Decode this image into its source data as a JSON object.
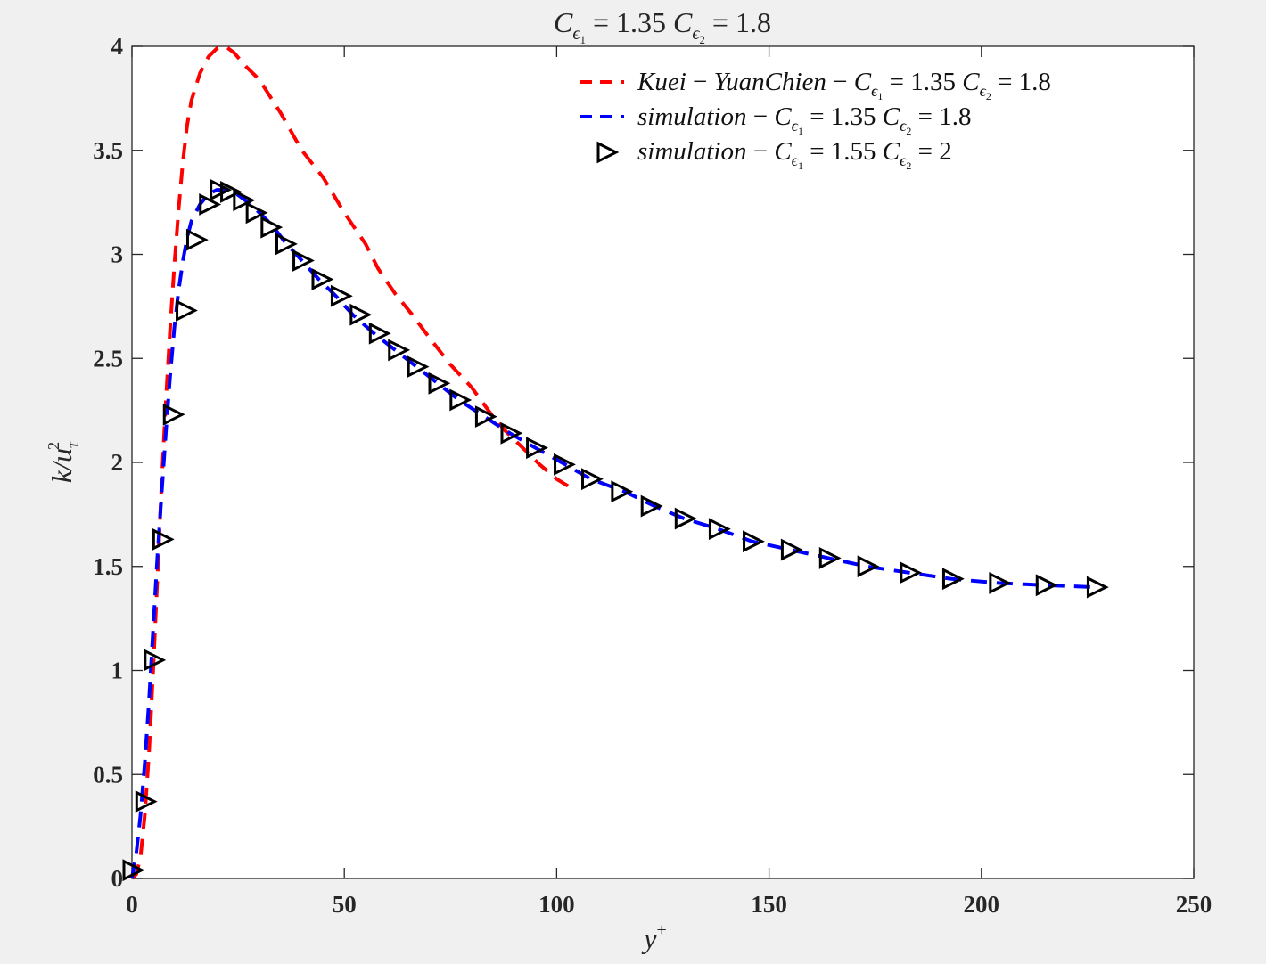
{
  "chart_data": {
    "type": "line",
    "title": "C_ε1 = 1.35 C_ε2 = 1.8",
    "xlabel": "y+",
    "ylabel": "k/u_τ^2",
    "xlim": [
      0,
      250
    ],
    "ylim": [
      0,
      4
    ],
    "xticks": [
      0,
      50,
      100,
      150,
      200,
      250
    ],
    "yticks": [
      0,
      0.5,
      1,
      1.5,
      2,
      2.5,
      3,
      3.5,
      4
    ],
    "grid": false,
    "legend_position": "top-right",
    "series": [
      {
        "name": "Kuei − YuanChien − C_ε1 = 1.35 C_ε2 = 1.8",
        "color": "#ff0000",
        "style": "dashed",
        "x": [
          0,
          1,
          2,
          3,
          4,
          5,
          6,
          7,
          8,
          9,
          10,
          11,
          12,
          13,
          14,
          16,
          18,
          20,
          22,
          24,
          27,
          30,
          35,
          40,
          45,
          50,
          55,
          58,
          62,
          66,
          70,
          75,
          80,
          85,
          88,
          92,
          96,
          100,
          104
        ],
        "y": [
          0,
          0.02,
          0.1,
          0.3,
          0.6,
          1.0,
          1.45,
          1.9,
          2.3,
          2.65,
          2.95,
          3.22,
          3.45,
          3.62,
          3.74,
          3.87,
          3.95,
          3.99,
          4.0,
          3.97,
          3.9,
          3.84,
          3.68,
          3.5,
          3.37,
          3.2,
          3.05,
          2.93,
          2.81,
          2.71,
          2.6,
          2.47,
          2.36,
          2.22,
          2.15,
          2.07,
          1.99,
          1.92,
          1.87
        ]
      },
      {
        "name": "simulation − C_ε1 = 1.35 C_ε2 = 1.8",
        "color": "#0000ff",
        "style": "dashed",
        "x": [
          0,
          1,
          2,
          3,
          4,
          5,
          6,
          7,
          8,
          9,
          10,
          11,
          12,
          13,
          14,
          16,
          18,
          20,
          22,
          24,
          26,
          28,
          30,
          33,
          36,
          40,
          44,
          48,
          52,
          57,
          62,
          67,
          72,
          77,
          83,
          89,
          95,
          102,
          108,
          116,
          123,
          130,
          138,
          146,
          155,
          164,
          173,
          183,
          193,
          204,
          215,
          227
        ],
        "y": [
          0,
          0.12,
          0.3,
          0.55,
          0.85,
          1.2,
          1.55,
          1.85,
          2.15,
          2.42,
          2.65,
          2.83,
          2.97,
          3.08,
          3.16,
          3.24,
          3.29,
          3.31,
          3.31,
          3.3,
          3.27,
          3.24,
          3.2,
          3.14,
          3.06,
          2.97,
          2.88,
          2.8,
          2.71,
          2.62,
          2.54,
          2.46,
          2.38,
          2.3,
          2.22,
          2.14,
          2.07,
          1.99,
          1.92,
          1.86,
          1.79,
          1.73,
          1.68,
          1.62,
          1.58,
          1.54,
          1.5,
          1.47,
          1.44,
          1.42,
          1.41,
          1.4
        ]
      },
      {
        "name": "simulation − C_ε1 = 1.55 C_ε2 = 2",
        "color": "#000000",
        "style": "markers",
        "marker": "triangle-right",
        "x": [
          0,
          3,
          5,
          7,
          9.5,
          12.5,
          15,
          18,
          20.5,
          23,
          26,
          29,
          32.5,
          36,
          40,
          44.5,
          49,
          53.5,
          58,
          62.5,
          67,
          72,
          77,
          83,
          89,
          95,
          101.5,
          108,
          115,
          122,
          130,
          138,
          146,
          155,
          164,
          173,
          183,
          193,
          204,
          215,
          227
        ],
        "y": [
          0.04,
          0.37,
          1.05,
          1.63,
          2.23,
          2.73,
          3.07,
          3.24,
          3.31,
          3.3,
          3.26,
          3.2,
          3.13,
          3.05,
          2.97,
          2.88,
          2.8,
          2.71,
          2.62,
          2.54,
          2.46,
          2.38,
          2.3,
          2.22,
          2.14,
          2.07,
          1.99,
          1.92,
          1.86,
          1.79,
          1.73,
          1.68,
          1.62,
          1.58,
          1.54,
          1.5,
          1.47,
          1.44,
          1.42,
          1.41,
          1.4
        ]
      }
    ]
  }
}
